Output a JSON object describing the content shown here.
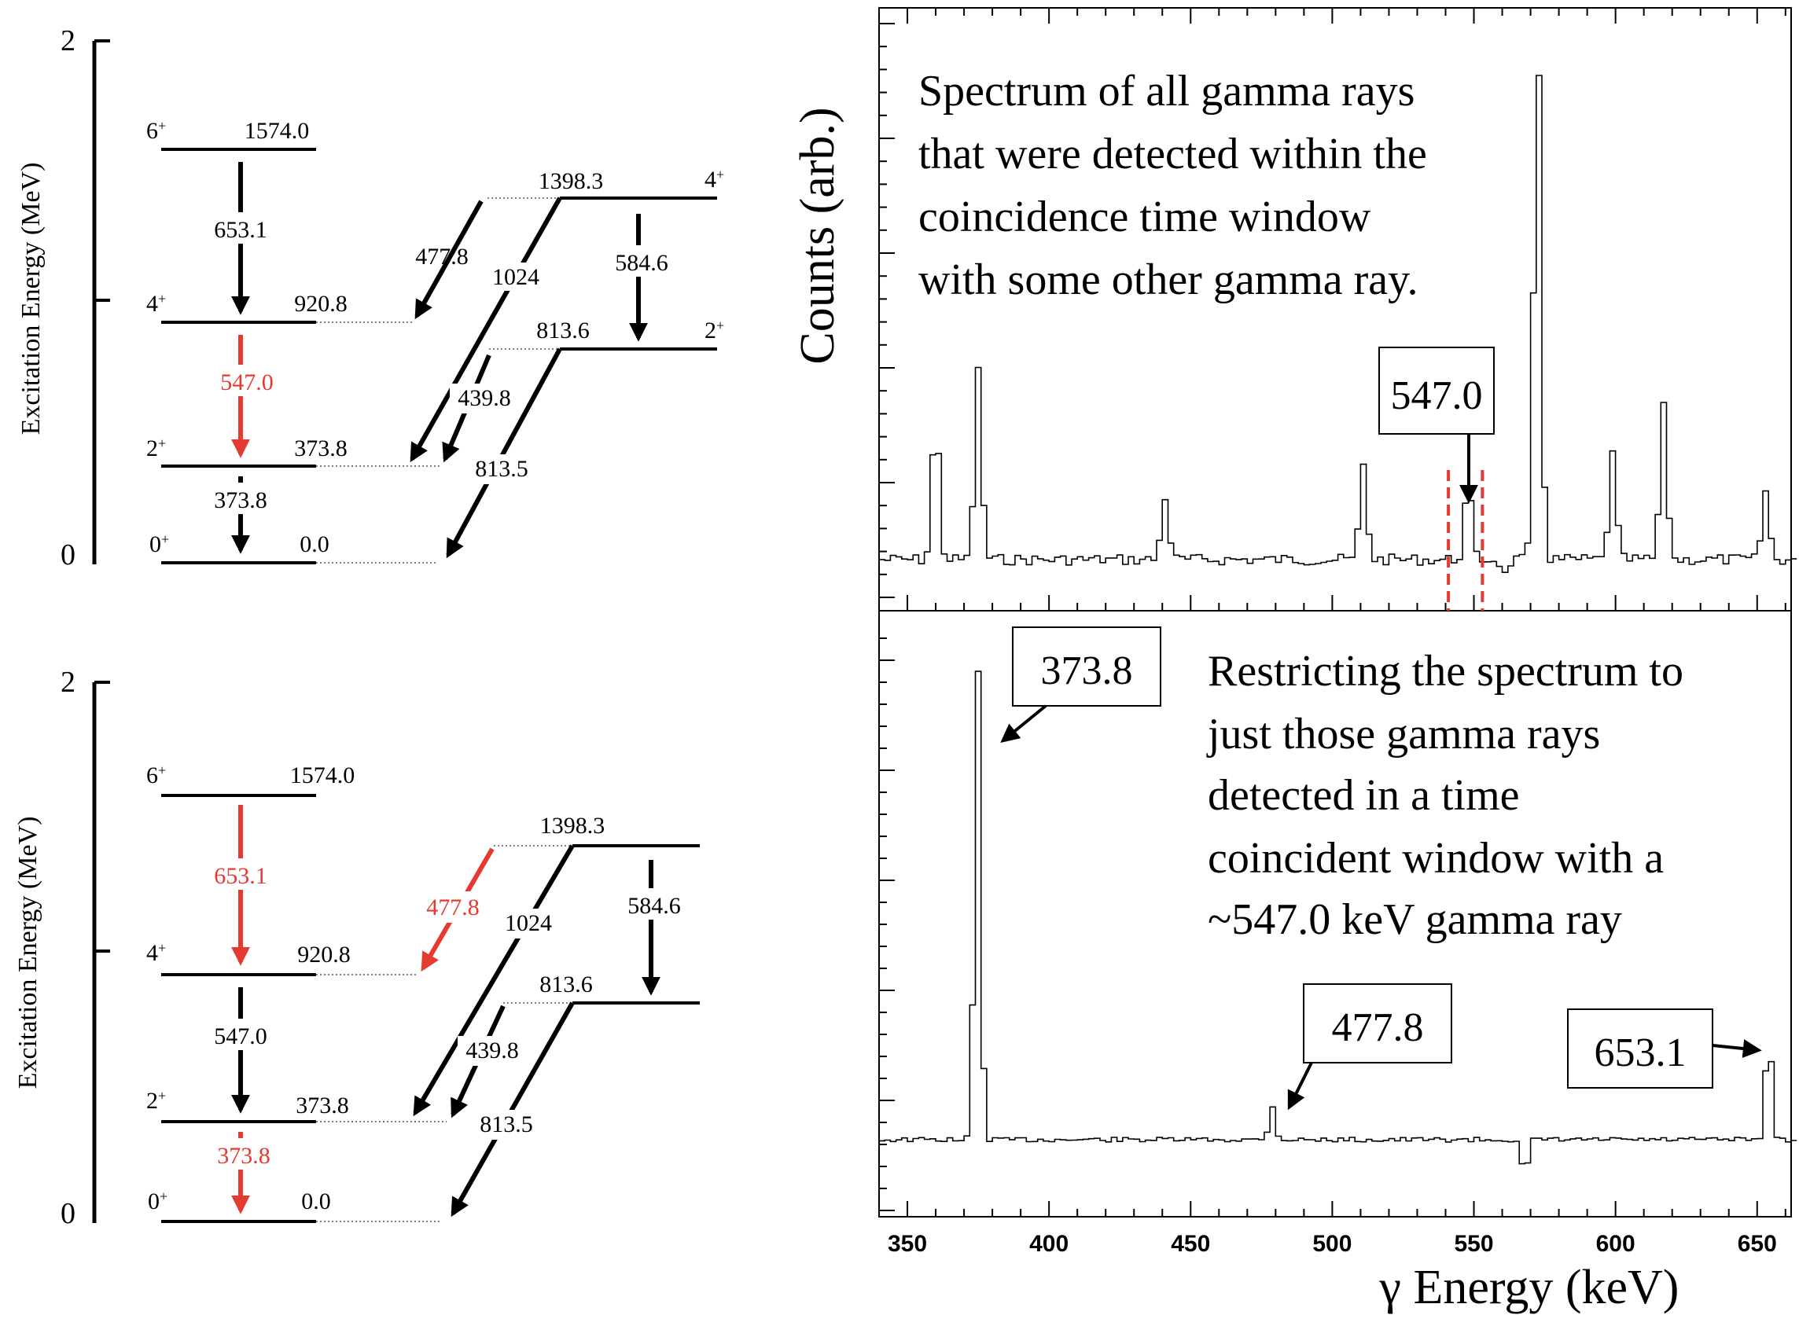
{
  "colors": {
    "highlight": "#e53a2f",
    "ink": "#000000"
  },
  "level_scheme": {
    "y_axis": {
      "label": "Excitation Energy (MeV)",
      "ticks": [
        "0",
        "2"
      ]
    },
    "levels": [
      {
        "spin": "6",
        "parity": "+",
        "energy": "1574.0"
      },
      {
        "spin": "4",
        "parity": "+",
        "energy": "920.8"
      },
      {
        "spin": "2",
        "parity": "+",
        "energy": "373.8"
      },
      {
        "spin": "0",
        "parity": "+",
        "energy": "0.0"
      },
      {
        "spin": "4",
        "parity": "+",
        "energy": "1398.3"
      },
      {
        "spin": "2",
        "parity": "+",
        "energy": "813.6"
      }
    ],
    "transitions": [
      "653.1",
      "547.0",
      "373.8",
      "477.8",
      "1024",
      "584.6",
      "439.8",
      "813.5"
    ],
    "top_panel_highlighted": [
      "547.0"
    ],
    "bottom_panel_highlighted": [
      "653.1",
      "477.8",
      "373.8"
    ]
  },
  "spectrum": {
    "y_label": "Counts (arb.)",
    "x_label": "γ Energy (keV)",
    "top_note": [
      "Spectrum of all gamma rays",
      "that were detected within the",
      "coincidence time window",
      "with some other gamma ray."
    ],
    "top_peak_label": "547.0",
    "bottom_note": [
      "Restricting the spectrum to",
      "just those gamma rays",
      "detected in a time",
      "coincident window with a",
      "~547.0 keV gamma ray"
    ],
    "bottom_peak_labels": [
      "373.8",
      "477.8",
      "653.1"
    ]
  },
  "chart_data": [
    {
      "type": "line",
      "title": "Spectrum of all gamma rays that were detected within the coincidence time window with some other gamma ray.",
      "xlabel": "γ Energy (keV)",
      "ylabel": "Counts (arb.)",
      "xlim": [
        340,
        662
      ],
      "x_ticks": [
        "350",
        "400",
        "450",
        "500",
        "550",
        "600",
        "650"
      ],
      "gate_window_keV": [
        541,
        553
      ],
      "peaks": [
        {
          "x": 359,
          "height": 0.27
        },
        {
          "x": 374,
          "height": 0.36
        },
        {
          "x": 440,
          "height": 0.12
        },
        {
          "x": 510,
          "height": 0.18
        },
        {
          "x": 547,
          "height": 0.14
        },
        {
          "x": 571.5,
          "height": 1.0
        },
        {
          "x": 598,
          "height": 0.2
        },
        {
          "x": 616,
          "height": 0.29
        },
        {
          "x": 652,
          "height": 0.13
        }
      ],
      "annotated_peak": "547.0"
    },
    {
      "type": "line",
      "title": "Restricting the spectrum to just those gamma rays detected in a time coincident window with a ~547.0 keV gamma ray",
      "xlabel": "γ Energy (keV)",
      "ylabel": "Counts (arb.)",
      "xlim": [
        340,
        662
      ],
      "x_ticks": [
        "350",
        "400",
        "450",
        "500",
        "550",
        "600",
        "650"
      ],
      "peaks": [
        {
          "x": 373.8,
          "height": 1.0
        },
        {
          "x": 477.8,
          "height": 0.07
        },
        {
          "x": 653.1,
          "height": 0.23
        }
      ],
      "annotated_peaks": [
        "373.8",
        "477.8",
        "653.1"
      ]
    }
  ]
}
